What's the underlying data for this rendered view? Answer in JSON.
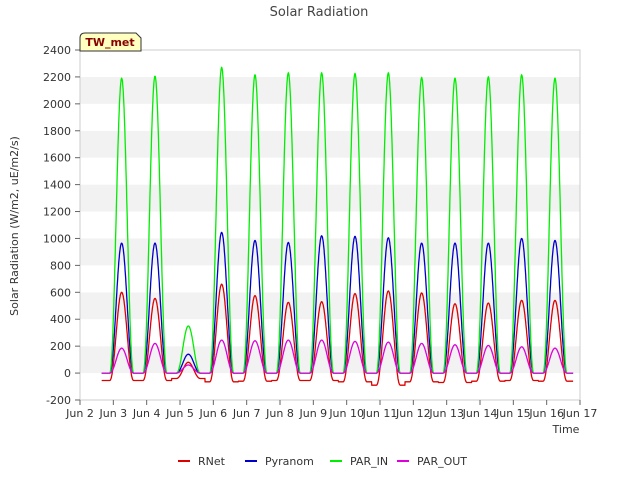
{
  "chart_data": {
    "type": "line",
    "title": "Solar Radiation",
    "xlabel": "Time",
    "ylabel": "Solar Radiation (W/m2, uE/m2/s)",
    "badge": "TW_met",
    "ylim": [
      -200,
      2400
    ],
    "xlim": [
      2,
      17
    ],
    "y_ticks": [
      -200,
      0,
      200,
      400,
      600,
      800,
      1000,
      1200,
      1400,
      1600,
      1800,
      2000,
      2200,
      2400
    ],
    "x_ticks": [
      2,
      3,
      4,
      5,
      6,
      7,
      8,
      9,
      10,
      11,
      12,
      13,
      14,
      15,
      16,
      17
    ],
    "x_tick_labels": [
      "Jun 2",
      "Jun 3",
      "Jun 4",
      "Jun 5",
      "Jun 6",
      "Jun 7",
      "Jun 8",
      "Jun 9",
      "Jun 10",
      "Jun 11",
      "Jun 12",
      "Jun 13",
      "Jun 14",
      "Jun 15",
      "Jun 16",
      "Jun 17"
    ],
    "grid": "horizontal bands",
    "legend": "bottom",
    "day_centers": [
      3.25,
      4.25,
      5.25,
      6.25,
      7.25,
      8.25,
      9.25,
      10.25,
      11.25,
      12.25,
      13.25,
      14.25,
      15.25,
      16.25
    ],
    "series": [
      {
        "name": "RNet",
        "color": "#dd0000",
        "night_values": [
          -55,
          -55,
          -40,
          -65,
          -60,
          -55,
          -55,
          -65,
          -90,
          -65,
          -70,
          -60,
          -55,
          -60
        ],
        "peaks": [
          600,
          555,
          80,
          660,
          575,
          525,
          530,
          590,
          610,
          595,
          515,
          520,
          540,
          540
        ]
      },
      {
        "name": "Pyranom",
        "color": "#0000cc",
        "night_values": [
          0,
          0,
          0,
          0,
          0,
          0,
          0,
          0,
          0,
          0,
          0,
          0,
          0,
          0
        ],
        "peaks": [
          965,
          965,
          140,
          1045,
          985,
          970,
          1020,
          1015,
          1005,
          965,
          965,
          965,
          1000,
          985
        ]
      },
      {
        "name": "PAR_IN",
        "color": "#00ee00",
        "night_values": [
          0,
          0,
          0,
          0,
          0,
          0,
          0,
          0,
          0,
          0,
          0,
          0,
          0,
          0
        ],
        "peaks": [
          2190,
          2205,
          350,
          2270,
          2215,
          2230,
          2230,
          2225,
          2230,
          2195,
          2190,
          2200,
          2215,
          2190
        ]
      },
      {
        "name": "PAR_OUT",
        "color": "#dd00dd",
        "night_values": [
          0,
          0,
          0,
          0,
          0,
          0,
          0,
          0,
          0,
          0,
          0,
          0,
          0,
          0
        ],
        "peaks": [
          185,
          220,
          60,
          245,
          240,
          245,
          245,
          235,
          230,
          220,
          210,
          205,
          195,
          185
        ]
      }
    ]
  }
}
